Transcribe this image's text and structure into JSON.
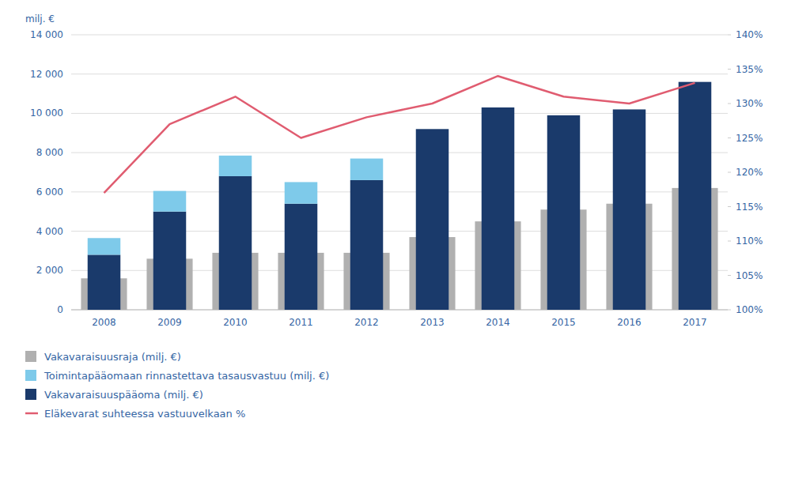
{
  "chart_data": {
    "type": "bar",
    "categories": [
      "2008",
      "2009",
      "2010",
      "2011",
      "2012",
      "2013",
      "2014",
      "2015",
      "2016",
      "2017"
    ],
    "y_label": "milj. €",
    "series": [
      {
        "name": "Vakavaraisuusraja (milj. €)",
        "type": "bar",
        "color": "#b0b0b0",
        "values": [
          1600,
          2600,
          2900,
          2900,
          2900,
          3700,
          4500,
          5100,
          5400,
          6200
        ]
      },
      {
        "name": "Toimintapääomaan rinnastettava tasausvastuu (milj. €)",
        "type": "bar",
        "stacked": true,
        "color": "#7ecaea",
        "values": [
          850,
          1050,
          1050,
          1100,
          1100,
          0,
          0,
          0,
          0,
          0
        ]
      },
      {
        "name": "Vakavaraisuuspääoma (milj. €)",
        "type": "bar",
        "stacked": true,
        "color": "#1a3a6b",
        "values": [
          2800,
          5000,
          6800,
          5400,
          6600,
          9200,
          10300,
          9900,
          10200,
          11600
        ]
      },
      {
        "name": "Eläkevarat suhteessa vastuuvelkaan %",
        "type": "line",
        "axis": "y2",
        "color": "#e05c70",
        "values": [
          117,
          127,
          131,
          125,
          128,
          130,
          134,
          131,
          130,
          133
        ]
      }
    ],
    "ylim": [
      0,
      14000
    ],
    "yticks": [
      0,
      {
        "value": 2000,
        "label": "2 000"
      },
      {
        "value": 4000,
        "label": "4 000"
      },
      {
        "value": 6000,
        "label": "6 000"
      },
      {
        "value": 8000,
        "label": "8 000"
      },
      {
        "value": 10000,
        "label": "10 000"
      },
      {
        "value": 12000,
        "label": "12 000"
      },
      {
        "value": 14000,
        "label": "14 000"
      }
    ],
    "y2lim": [
      100,
      140
    ],
    "y2ticks": [
      {
        "value": 100,
        "label": "100%"
      },
      {
        "value": 105,
        "label": "105%"
      },
      {
        "value": 110,
        "label": "110%"
      },
      {
        "value": 115,
        "label": "115%"
      },
      {
        "value": 120,
        "label": "120%"
      },
      {
        "value": 125,
        "label": "125%"
      },
      {
        "value": 130,
        "label": "130%"
      },
      {
        "value": 135,
        "label": "135%"
      },
      {
        "value": 140,
        "label": "140%"
      }
    ],
    "grid": true,
    "legend": "bottom"
  }
}
